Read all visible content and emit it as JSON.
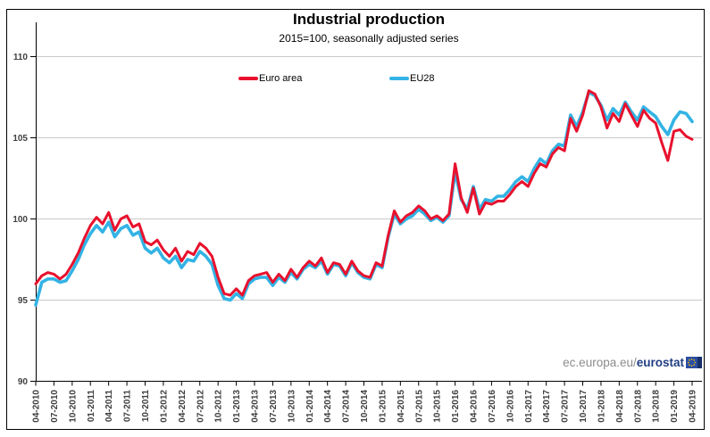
{
  "header": {
    "title": "Industrial production",
    "subtitle": "2015=100, seasonally adjusted series"
  },
  "legend": {
    "items": [
      {
        "label": "Euro area",
        "color": "#e8112d"
      },
      {
        "label": "EU28",
        "color": "#33b3e5"
      }
    ]
  },
  "watermark": {
    "prefix": "ec.europa.eu/",
    "brand": "eurostat"
  },
  "colors": {
    "euro_area": "#e8112d",
    "eu28": "#33b3e5",
    "gridline": "#c9c9c9",
    "axis": "#000000",
    "tick_label": "#404040",
    "flag_blue": "#2b4ea2",
    "flag_dark": "#17306b",
    "flag_star": "#ffcc00"
  },
  "chart_data": {
    "type": "line",
    "title": "Industrial production",
    "subtitle": "2015=100, seasonally adjusted series",
    "x_unit": "month",
    "x_start": "04-2010",
    "x_end": "04-2019",
    "grid": "horizontal",
    "legend_position": "top-inside",
    "ylim": [
      90,
      110
    ],
    "y_ticks": [
      90,
      95,
      100,
      105,
      110
    ],
    "x_tick_labels": [
      "04-2010",
      "07-2010",
      "10-2010",
      "01-2011",
      "04-2011",
      "07-2011",
      "10-2011",
      "01-2012",
      "04-2012",
      "07-2012",
      "10-2012",
      "01-2013",
      "04-2013",
      "07-2013",
      "10-2013",
      "01-2014",
      "04-2014",
      "07-2014",
      "10-2014",
      "01-2015",
      "04-2015",
      "07-2015",
      "10-2015",
      "01-2016",
      "04-2016",
      "07-2016",
      "10-2016",
      "01-2017",
      "04-2017",
      "07-2017",
      "10-2017",
      "01-2018",
      "04-2018",
      "07-2018",
      "10-2018",
      "01-2019",
      "04-2019"
    ],
    "x_tick_step_months": 3,
    "series": [
      {
        "name": "EU28",
        "color": "#33b3e5",
        "stroke_width": 3.6,
        "values": [
          94.7,
          96.1,
          96.3,
          96.3,
          96.1,
          96.2,
          96.8,
          97.5,
          98.4,
          99.1,
          99.6,
          99.2,
          99.8,
          98.9,
          99.4,
          99.6,
          99.0,
          99.2,
          98.2,
          97.9,
          98.2,
          97.6,
          97.3,
          97.7,
          97.0,
          97.5,
          97.4,
          98.0,
          97.7,
          97.2,
          95.9,
          95.1,
          95.0,
          95.4,
          95.1,
          96.0,
          96.3,
          96.4,
          96.4,
          95.9,
          96.4,
          96.1,
          96.7,
          96.3,
          96.9,
          97.2,
          97.0,
          97.4,
          96.6,
          97.2,
          97.1,
          96.5,
          97.3,
          96.7,
          96.4,
          96.3,
          97.2,
          97.0,
          98.9,
          100.3,
          99.7,
          100.0,
          100.2,
          100.6,
          100.3,
          99.9,
          100.1,
          99.8,
          100.2,
          102.9,
          101.2,
          100.6,
          102.0,
          100.6,
          101.2,
          101.1,
          101.4,
          101.4,
          101.8,
          102.3,
          102.6,
          102.3,
          103.1,
          103.7,
          103.4,
          104.2,
          104.6,
          104.5,
          106.4,
          105.7,
          106.6,
          107.8,
          107.6,
          107.0,
          106.1,
          106.8,
          106.4,
          107.2,
          106.6,
          106.1,
          106.9,
          106.6,
          106.3,
          105.7,
          105.2,
          106.1,
          106.6,
          106.5,
          106.0
        ]
      },
      {
        "name": "Euro area",
        "color": "#e8112d",
        "stroke_width": 3.0,
        "values": [
          96.0,
          96.5,
          96.7,
          96.6,
          96.3,
          96.6,
          97.2,
          97.9,
          98.8,
          99.6,
          100.1,
          99.7,
          100.4,
          99.3,
          100.0,
          100.2,
          99.5,
          99.7,
          98.6,
          98.4,
          98.7,
          98.1,
          97.7,
          98.2,
          97.4,
          98.0,
          97.8,
          98.5,
          98.2,
          97.7,
          96.4,
          95.4,
          95.3,
          95.7,
          95.3,
          96.2,
          96.5,
          96.6,
          96.7,
          96.1,
          96.6,
          96.2,
          96.9,
          96.4,
          97.0,
          97.4,
          97.1,
          97.6,
          96.7,
          97.3,
          97.2,
          96.6,
          97.4,
          96.8,
          96.5,
          96.4,
          97.3,
          97.1,
          99.0,
          100.5,
          99.8,
          100.2,
          100.4,
          100.8,
          100.5,
          100.0,
          100.2,
          99.9,
          100.3,
          103.4,
          101.3,
          100.4,
          101.9,
          100.3,
          101.0,
          100.9,
          101.1,
          101.1,
          101.5,
          102.0,
          102.3,
          102.0,
          102.8,
          103.4,
          103.2,
          104.0,
          104.4,
          104.2,
          106.2,
          105.4,
          106.4,
          107.9,
          107.7,
          106.9,
          105.6,
          106.5,
          106.0,
          107.1,
          106.4,
          105.7,
          106.7,
          106.2,
          105.9,
          104.7,
          103.6,
          105.4,
          105.5,
          105.1,
          104.9
        ]
      }
    ]
  }
}
